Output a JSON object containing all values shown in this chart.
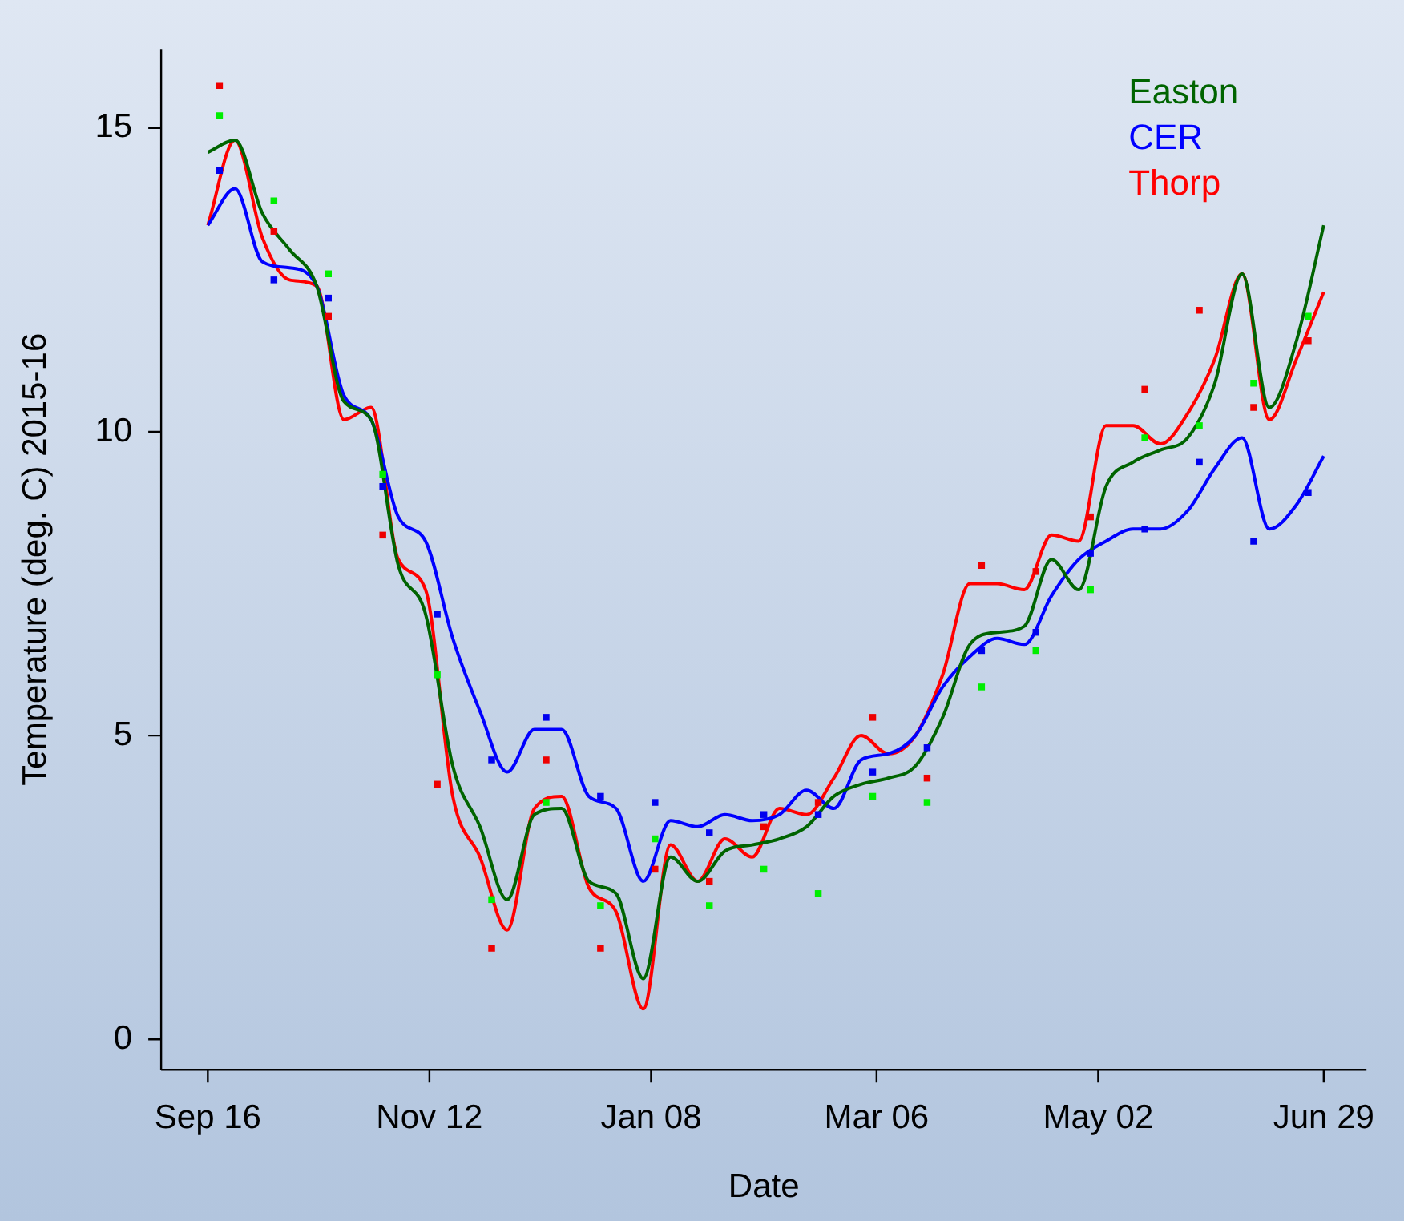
{
  "chart_data": {
    "type": "line",
    "xlabel": "Date",
    "ylabel": "Temperature (deg. C) 2015-16",
    "legend": "top right",
    "x": [
      "2015-09-16",
      "2015-09-23",
      "2015-09-30",
      "2015-10-07",
      "2015-10-14",
      "2015-10-21",
      "2015-10-28",
      "2015-11-04",
      "2015-11-11",
      "2015-11-18",
      "2015-11-25",
      "2015-12-02",
      "2015-12-09",
      "2015-12-16",
      "2015-12-23",
      "2015-12-30",
      "2016-01-06",
      "2016-01-13",
      "2016-01-20",
      "2016-01-27",
      "2016-02-03",
      "2016-02-10",
      "2016-02-17",
      "2016-02-24",
      "2016-03-02",
      "2016-03-09",
      "2016-03-16",
      "2016-03-23",
      "2016-03-30",
      "2016-04-06",
      "2016-04-13",
      "2016-04-20",
      "2016-04-27",
      "2016-05-04",
      "2016-05-11",
      "2016-05-18",
      "2016-05-25",
      "2016-06-01",
      "2016-06-08",
      "2016-06-15",
      "2016-06-22",
      "2016-06-29"
    ],
    "series": [
      {
        "type": "scatter",
        "marker": "square",
        "color": "#00ee00",
        "x": [
          "2015-09-19",
          "2015-10-03",
          "2015-10-17",
          "2015-10-31",
          "2015-11-14",
          "2015-11-28",
          "2015-12-12",
          "2015-12-26",
          "2016-01-09",
          "2016-01-23",
          "2016-02-06",
          "2016-02-20",
          "2016-03-05",
          "2016-03-19",
          "2016-04-02",
          "2016-04-16",
          "2016-04-30",
          "2016-05-14",
          "2016-05-28",
          "2016-06-11",
          "2016-06-25"
        ],
        "values": [
          15.2,
          13.8,
          12.6,
          9.3,
          6.0,
          2.3,
          3.9,
          2.2,
          3.3,
          2.2,
          2.8,
          2.4,
          4.0,
          3.9,
          5.8,
          6.4,
          7.4,
          9.9,
          10.1,
          10.8,
          11.9
        ]
      },
      {
        "type": "scatter",
        "marker": "square",
        "color": "#0000ee",
        "x": [
          "2015-09-19",
          "2015-10-03",
          "2015-10-17",
          "2015-10-31",
          "2015-11-14",
          "2015-11-28",
          "2015-12-12",
          "2015-12-26",
          "2016-01-09",
          "2016-01-23",
          "2016-02-06",
          "2016-02-20",
          "2016-03-05",
          "2016-03-19",
          "2016-04-02",
          "2016-04-16",
          "2016-04-30",
          "2016-05-14",
          "2016-05-28",
          "2016-06-11",
          "2016-06-25"
        ],
        "values": [
          14.3,
          12.5,
          12.2,
          9.1,
          7.0,
          4.6,
          5.3,
          4.0,
          3.9,
          3.4,
          3.7,
          3.7,
          4.4,
          4.8,
          6.4,
          6.7,
          8.0,
          8.4,
          9.5,
          8.2,
          9.0
        ]
      },
      {
        "type": "scatter",
        "marker": "square",
        "color": "#ee0000",
        "x": [
          "2015-09-19",
          "2015-10-03",
          "2015-10-17",
          "2015-10-31",
          "2015-11-14",
          "2015-11-28",
          "2015-12-12",
          "2015-12-26",
          "2016-01-09",
          "2016-01-23",
          "2016-02-06",
          "2016-02-20",
          "2016-03-05",
          "2016-03-19",
          "2016-04-02",
          "2016-04-16",
          "2016-04-30",
          "2016-05-14",
          "2016-05-28",
          "2016-06-11",
          "2016-06-25"
        ],
        "values": [
          15.7,
          13.3,
          11.9,
          8.3,
          4.2,
          1.5,
          4.6,
          1.5,
          2.8,
          2.6,
          3.5,
          3.9,
          5.3,
          4.3,
          7.8,
          7.7,
          8.6,
          10.7,
          12.0,
          10.4,
          11.5
        ]
      },
      {
        "name": "Easton",
        "marker": "none",
        "color": "#006400",
        "values": [
          14.6,
          14.8,
          13.6,
          13.0,
          12.4,
          10.5,
          10.2,
          7.8,
          7.0,
          4.5,
          3.5,
          2.3,
          3.7,
          3.8,
          2.6,
          2.4,
          1.0,
          3.0,
          2.6,
          3.1,
          3.2,
          3.3,
          3.5,
          4.0,
          4.2,
          4.3,
          4.5,
          5.3,
          6.5,
          6.7,
          6.8,
          7.9,
          7.4,
          9.1,
          9.5,
          9.7,
          9.9,
          10.8,
          12.6,
          10.4,
          11.5,
          13.4
        ]
      },
      {
        "name": "CER",
        "marker": "none",
        "color": "#0000ff",
        "values": [
          13.4,
          14.0,
          12.8,
          12.7,
          12.4,
          10.6,
          10.2,
          8.6,
          8.2,
          6.6,
          5.4,
          4.4,
          5.1,
          5.1,
          4.0,
          3.8,
          2.6,
          3.6,
          3.5,
          3.7,
          3.6,
          3.7,
          4.1,
          3.8,
          4.6,
          4.7,
          5.0,
          5.8,
          6.3,
          6.6,
          6.5,
          7.3,
          7.9,
          8.2,
          8.4,
          8.4,
          8.7,
          9.4,
          9.9,
          8.4,
          8.8,
          9.6
        ]
      },
      {
        "name": "Thorp",
        "marker": "none",
        "color": "#ff0000",
        "values": [
          13.4,
          14.8,
          13.2,
          12.5,
          12.4,
          10.2,
          10.4,
          7.9,
          7.4,
          4.0,
          3.0,
          1.8,
          3.8,
          4.0,
          2.5,
          2.1,
          0.5,
          3.2,
          2.6,
          3.3,
          3.0,
          3.8,
          3.7,
          4.3,
          5.0,
          4.7,
          5.0,
          6.0,
          7.5,
          7.5,
          7.4,
          8.3,
          8.2,
          10.1,
          10.1,
          9.8,
          10.3,
          11.2,
          12.6,
          10.2,
          11.2,
          12.3
        ]
      }
    ],
    "xlim": [
      "2015-09-04",
      "2016-07-10"
    ],
    "xticks": [
      {
        "value": "2015-09-16",
        "label": "Sep 16"
      },
      {
        "value": "2015-11-12",
        "label": "Nov 12"
      },
      {
        "value": "2016-01-08",
        "label": "Jan 08"
      },
      {
        "value": "2016-03-06",
        "label": "Mar 06"
      },
      {
        "value": "2016-05-02",
        "label": "May 02"
      },
      {
        "value": "2016-06-29",
        "label": "Jun 29"
      }
    ],
    "ylim": [
      -0.5,
      16.3
    ],
    "yticks": [
      0,
      5,
      10,
      15
    ]
  }
}
